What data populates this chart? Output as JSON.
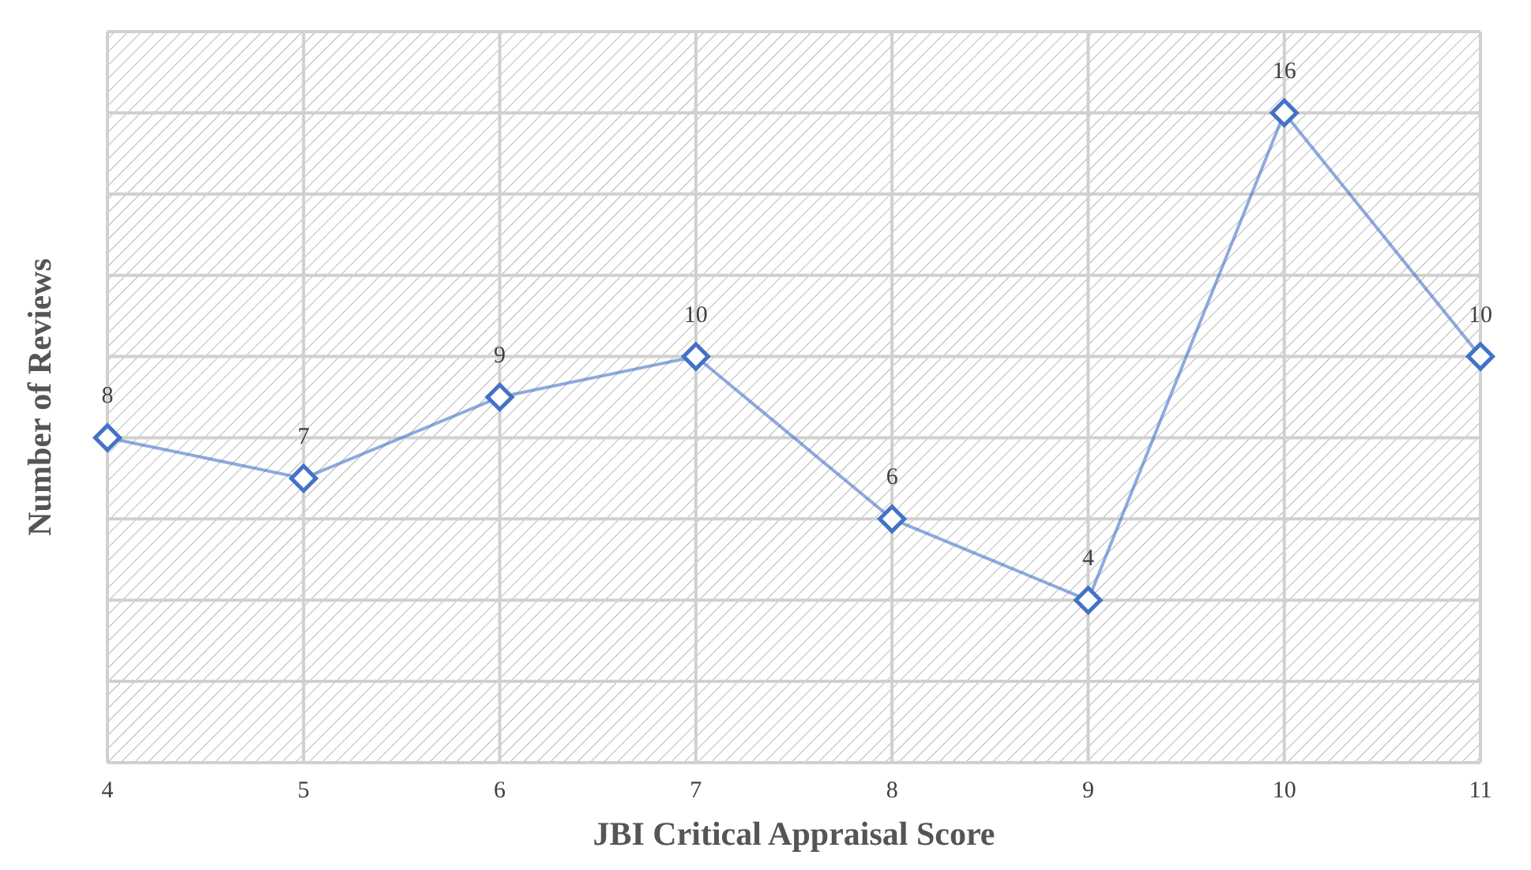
{
  "chart_data": {
    "type": "line",
    "xlabel": "JBI Critical Appraisal Score",
    "ylabel": "Number of Reviews",
    "categories": [
      "4",
      "5",
      "6",
      "7",
      "8",
      "9",
      "10",
      "11"
    ],
    "series": [
      {
        "color": "#4472c4",
        "values": [
          8,
          7,
          9,
          10,
          6,
          4,
          16,
          10
        ]
      }
    ],
    "ylim": [
      0,
      18
    ],
    "yticks": [
      {
        "value": 0,
        "label": null
      },
      {
        "value": 2,
        "label": null
      },
      {
        "value": 4,
        "label": null
      },
      {
        "value": 6,
        "label": null
      },
      {
        "value": 8,
        "label": null
      },
      {
        "value": 10,
        "label": null
      },
      {
        "value": 12,
        "label": null
      },
      {
        "value": 14,
        "label": null
      },
      {
        "value": 16,
        "label": null
      },
      {
        "value": 18,
        "label": null
      }
    ],
    "tick_labels": "x",
    "grid": true,
    "marker": "diamond",
    "line_style": "solid",
    "data_labels": true
  }
}
